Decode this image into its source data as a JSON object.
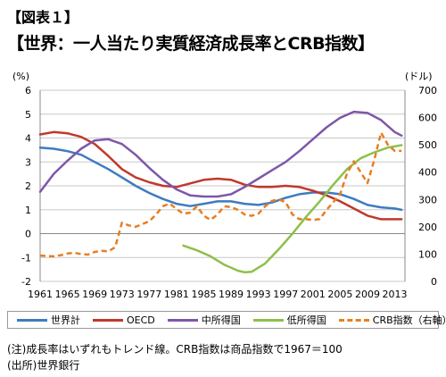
{
  "header": {
    "tag": "【図表１】",
    "title": "【世界：一人当たり実質経済成長率とCRB指数】"
  },
  "footnotes": {
    "note": "(注)成長率はいずれもトレンド線。CRB指数は商品指数で1967＝100",
    "source": "(出所)世界銀行"
  },
  "chart_data": {
    "type": "line",
    "left_unit": "(%)",
    "right_unit": "(ドル)",
    "ylim_left": [
      -2,
      6
    ],
    "ylim_right": [
      0,
      700
    ],
    "x_ticks": [
      1961,
      1965,
      1969,
      1973,
      1977,
      1981,
      1985,
      1989,
      1993,
      1997,
      2001,
      2005,
      2009,
      2013
    ],
    "left_ticks": [
      -2,
      -1,
      0,
      1,
      2,
      3,
      4,
      5,
      6
    ],
    "right_ticks": [
      0,
      100,
      200,
      300,
      400,
      500,
      600,
      700
    ],
    "grid": true,
    "legend_position": "bottom",
    "series": [
      {
        "name": "世界計",
        "axis": "left",
        "color": "#3E7BC0",
        "dash": false,
        "points": [
          [
            1961,
            3.6
          ],
          [
            1963,
            3.55
          ],
          [
            1965,
            3.45
          ],
          [
            1967,
            3.3
          ],
          [
            1969,
            3.0
          ],
          [
            1971,
            2.7
          ],
          [
            1973,
            2.35
          ],
          [
            1975,
            2.0
          ],
          [
            1977,
            1.7
          ],
          [
            1979,
            1.45
          ],
          [
            1981,
            1.25
          ],
          [
            1983,
            1.15
          ],
          [
            1985,
            1.25
          ],
          [
            1987,
            1.35
          ],
          [
            1989,
            1.35
          ],
          [
            1991,
            1.25
          ],
          [
            1993,
            1.2
          ],
          [
            1995,
            1.3
          ],
          [
            1997,
            1.5
          ],
          [
            1999,
            1.65
          ],
          [
            2001,
            1.72
          ],
          [
            2003,
            1.72
          ],
          [
            2005,
            1.65
          ],
          [
            2007,
            1.45
          ],
          [
            2009,
            1.2
          ],
          [
            2011,
            1.1
          ],
          [
            2013,
            1.05
          ],
          [
            2014,
            1.0
          ]
        ]
      },
      {
        "name": "OECD",
        "axis": "left",
        "color": "#C0392B",
        "dash": false,
        "points": [
          [
            1961,
            4.15
          ],
          [
            1963,
            4.25
          ],
          [
            1965,
            4.2
          ],
          [
            1967,
            4.05
          ],
          [
            1969,
            3.75
          ],
          [
            1971,
            3.25
          ],
          [
            1973,
            2.7
          ],
          [
            1975,
            2.35
          ],
          [
            1977,
            2.15
          ],
          [
            1979,
            2.0
          ],
          [
            1981,
            1.95
          ],
          [
            1983,
            2.1
          ],
          [
            1985,
            2.25
          ],
          [
            1987,
            2.3
          ],
          [
            1989,
            2.25
          ],
          [
            1991,
            2.05
          ],
          [
            1993,
            1.95
          ],
          [
            1995,
            1.95
          ],
          [
            1997,
            2.0
          ],
          [
            1999,
            1.95
          ],
          [
            2001,
            1.8
          ],
          [
            2003,
            1.6
          ],
          [
            2005,
            1.35
          ],
          [
            2007,
            1.05
          ],
          [
            2009,
            0.75
          ],
          [
            2011,
            0.6
          ],
          [
            2013,
            0.6
          ],
          [
            2014,
            0.6
          ]
        ]
      },
      {
        "name": "中所得国",
        "axis": "left",
        "color": "#7E57A8",
        "dash": false,
        "points": [
          [
            1961,
            1.75
          ],
          [
            1963,
            2.5
          ],
          [
            1965,
            3.05
          ],
          [
            1967,
            3.55
          ],
          [
            1969,
            3.9
          ],
          [
            1971,
            3.95
          ],
          [
            1973,
            3.75
          ],
          [
            1975,
            3.3
          ],
          [
            1977,
            2.75
          ],
          [
            1979,
            2.25
          ],
          [
            1981,
            1.85
          ],
          [
            1983,
            1.6
          ],
          [
            1985,
            1.55
          ],
          [
            1987,
            1.55
          ],
          [
            1989,
            1.65
          ],
          [
            1991,
            1.95
          ],
          [
            1993,
            2.3
          ],
          [
            1995,
            2.65
          ],
          [
            1997,
            3.0
          ],
          [
            1999,
            3.45
          ],
          [
            2001,
            3.95
          ],
          [
            2003,
            4.45
          ],
          [
            2005,
            4.85
          ],
          [
            2007,
            5.1
          ],
          [
            2009,
            5.05
          ],
          [
            2011,
            4.75
          ],
          [
            2013,
            4.25
          ],
          [
            2014,
            4.1
          ]
        ]
      },
      {
        "name": "低所得国",
        "axis": "left",
        "color": "#8DC04A",
        "dash": false,
        "points": [
          [
            1982,
            -0.5
          ],
          [
            1984,
            -0.7
          ],
          [
            1986,
            -0.95
          ],
          [
            1988,
            -1.3
          ],
          [
            1990,
            -1.55
          ],
          [
            1991,
            -1.62
          ],
          [
            1992,
            -1.6
          ],
          [
            1994,
            -1.25
          ],
          [
            1996,
            -0.65
          ],
          [
            1998,
            0.0
          ],
          [
            2000,
            0.7
          ],
          [
            2002,
            1.35
          ],
          [
            2004,
            2.05
          ],
          [
            2006,
            2.7
          ],
          [
            2008,
            3.15
          ],
          [
            2010,
            3.4
          ],
          [
            2012,
            3.6
          ],
          [
            2014,
            3.7
          ]
        ]
      },
      {
        "name": "CRB指数（右軸）",
        "axis": "right",
        "color": "#E67E22",
        "dash": true,
        "points": [
          [
            1961,
            95
          ],
          [
            1962,
            93
          ],
          [
            1963,
            92
          ],
          [
            1964,
            96
          ],
          [
            1965,
            102
          ],
          [
            1966,
            105
          ],
          [
            1967,
            100
          ],
          [
            1968,
            98
          ],
          [
            1969,
            108
          ],
          [
            1970,
            112
          ],
          [
            1971,
            110
          ],
          [
            1972,
            125
          ],
          [
            1973,
            215
          ],
          [
            1974,
            205
          ],
          [
            1975,
            200
          ],
          [
            1976,
            210
          ],
          [
            1977,
            220
          ],
          [
            1978,
            245
          ],
          [
            1979,
            275
          ],
          [
            1980,
            285
          ],
          [
            1981,
            265
          ],
          [
            1982,
            248
          ],
          [
            1983,
            252
          ],
          [
            1984,
            275
          ],
          [
            1985,
            240
          ],
          [
            1986,
            225
          ],
          [
            1987,
            245
          ],
          [
            1988,
            275
          ],
          [
            1989,
            272
          ],
          [
            1990,
            262
          ],
          [
            1991,
            245
          ],
          [
            1992,
            240
          ],
          [
            1993,
            248
          ],
          [
            1994,
            275
          ],
          [
            1995,
            295
          ],
          [
            1996,
            300
          ],
          [
            1997,
            290
          ],
          [
            1998,
            245
          ],
          [
            1999,
            228
          ],
          [
            2000,
            228
          ],
          [
            2001,
            225
          ],
          [
            2002,
            228
          ],
          [
            2003,
            262
          ],
          [
            2004,
            290
          ],
          [
            2005,
            320
          ],
          [
            2006,
            395
          ],
          [
            2007,
            440
          ],
          [
            2008,
            400
          ],
          [
            2009,
            360
          ],
          [
            2010,
            445
          ],
          [
            2011,
            545
          ],
          [
            2012,
            500
          ],
          [
            2013,
            478
          ],
          [
            2014,
            478
          ]
        ]
      }
    ]
  }
}
